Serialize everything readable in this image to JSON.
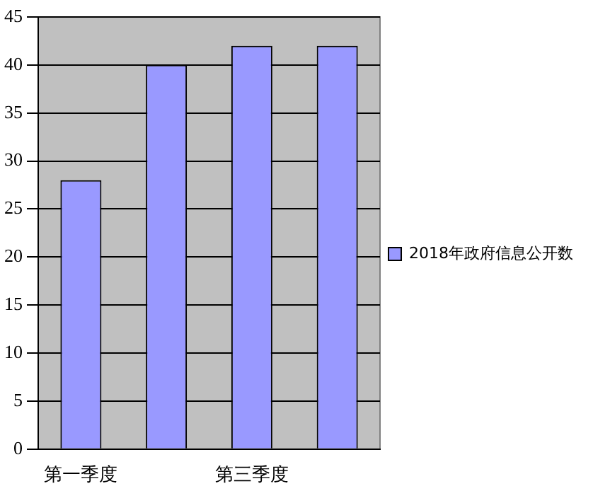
{
  "chart_data": {
    "type": "bar",
    "categories": [
      "第一季度",
      null,
      "第三季度",
      null
    ],
    "series": [
      {
        "name": "2018年政府信息公开数",
        "color": "#9999ff",
        "values": [
          28,
          40,
          42,
          42
        ]
      }
    ],
    "ylim": [
      0,
      45
    ],
    "yticks": [
      0,
      5,
      10,
      15,
      20,
      25,
      30,
      35,
      40,
      45
    ],
    "grid": "y",
    "legend": "right"
  }
}
